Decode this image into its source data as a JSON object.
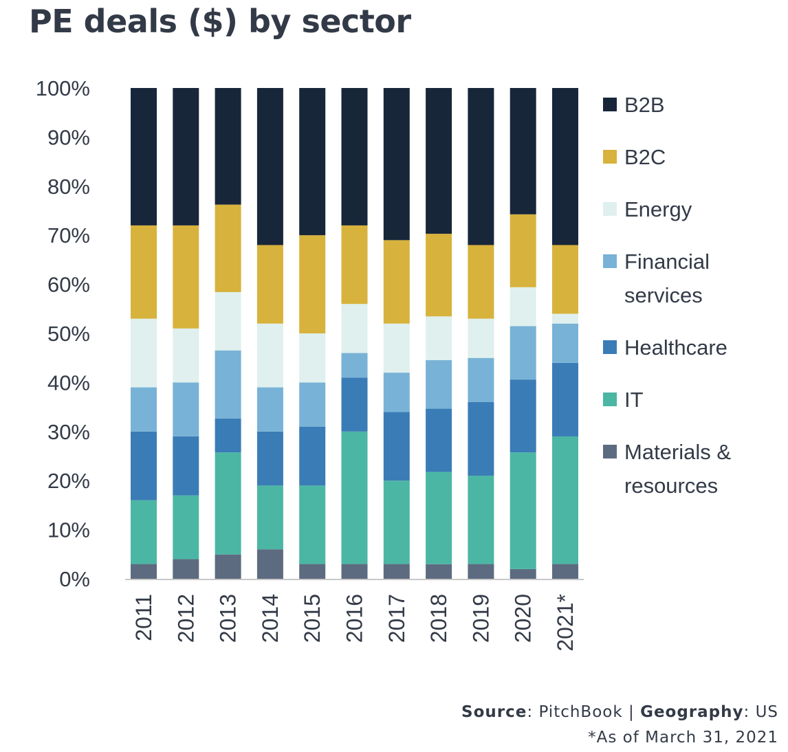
{
  "title": "PE deals ($) by sector",
  "source": {
    "source_label": "Source",
    "source_value": "PitchBook",
    "separator": "|",
    "geography_label": "Geography",
    "geography_value": "US",
    "footnote": "*As of March 31, 2021"
  },
  "colors": {
    "B2B": "#18263a",
    "B2C": "#d7b23c",
    "Energy": "#dff0ee",
    "Financial services": "#78b2d6",
    "Healthcare": "#3a7cb6",
    "IT": "#4bb6a4",
    "Materials & resources": "#5c6b80",
    "axis": "#c8c8c8",
    "text": "#333a47"
  },
  "chart_data": {
    "type": "bar",
    "stacked": true,
    "normalized": true,
    "categories": [
      "2011",
      "2012",
      "2013",
      "2014",
      "2015",
      "2016",
      "2017",
      "2018",
      "2019",
      "2020",
      "2021*"
    ],
    "series": [
      {
        "name": "Materials & resources",
        "values": [
          3,
          4,
          5,
          6,
          3,
          3,
          3,
          3,
          3,
          2,
          3
        ]
      },
      {
        "name": "IT",
        "values": [
          13,
          13,
          21,
          13,
          16,
          27,
          17,
          19,
          18,
          24,
          26
        ]
      },
      {
        "name": "Healthcare",
        "values": [
          14,
          12,
          7,
          11,
          12,
          11,
          14,
          13,
          15,
          15,
          15
        ]
      },
      {
        "name": "Financial services",
        "values": [
          9,
          11,
          14,
          9,
          9,
          5,
          8,
          10,
          9,
          11,
          8
        ]
      },
      {
        "name": "Energy",
        "values": [
          14,
          11,
          12,
          13,
          10,
          10,
          10,
          9,
          8,
          8,
          2
        ]
      },
      {
        "name": "B2C",
        "values": [
          19,
          21,
          18,
          16,
          20,
          16,
          17,
          17,
          15,
          15,
          14
        ]
      },
      {
        "name": "B2B",
        "values": [
          28,
          28,
          24,
          32,
          30,
          28,
          31,
          30,
          32,
          26,
          32
        ]
      }
    ],
    "legend": [
      {
        "name": "B2B",
        "lines": [
          "B2B"
        ]
      },
      {
        "name": "B2C",
        "lines": [
          "B2C"
        ]
      },
      {
        "name": "Energy",
        "lines": [
          "Energy"
        ]
      },
      {
        "name": "Financial services",
        "lines": [
          "Financial",
          "services"
        ]
      },
      {
        "name": "Healthcare",
        "lines": [
          "Healthcare"
        ]
      },
      {
        "name": "IT",
        "lines": [
          "IT"
        ]
      },
      {
        "name": "Materials & resources",
        "lines": [
          "Materials &",
          "resources"
        ]
      }
    ],
    "yticks": [
      "0%",
      "10%",
      "20%",
      "30%",
      "40%",
      "50%",
      "60%",
      "70%",
      "80%",
      "90%",
      "100%"
    ],
    "ylim": [
      0,
      100
    ],
    "grid": false,
    "legend_position": "right"
  }
}
